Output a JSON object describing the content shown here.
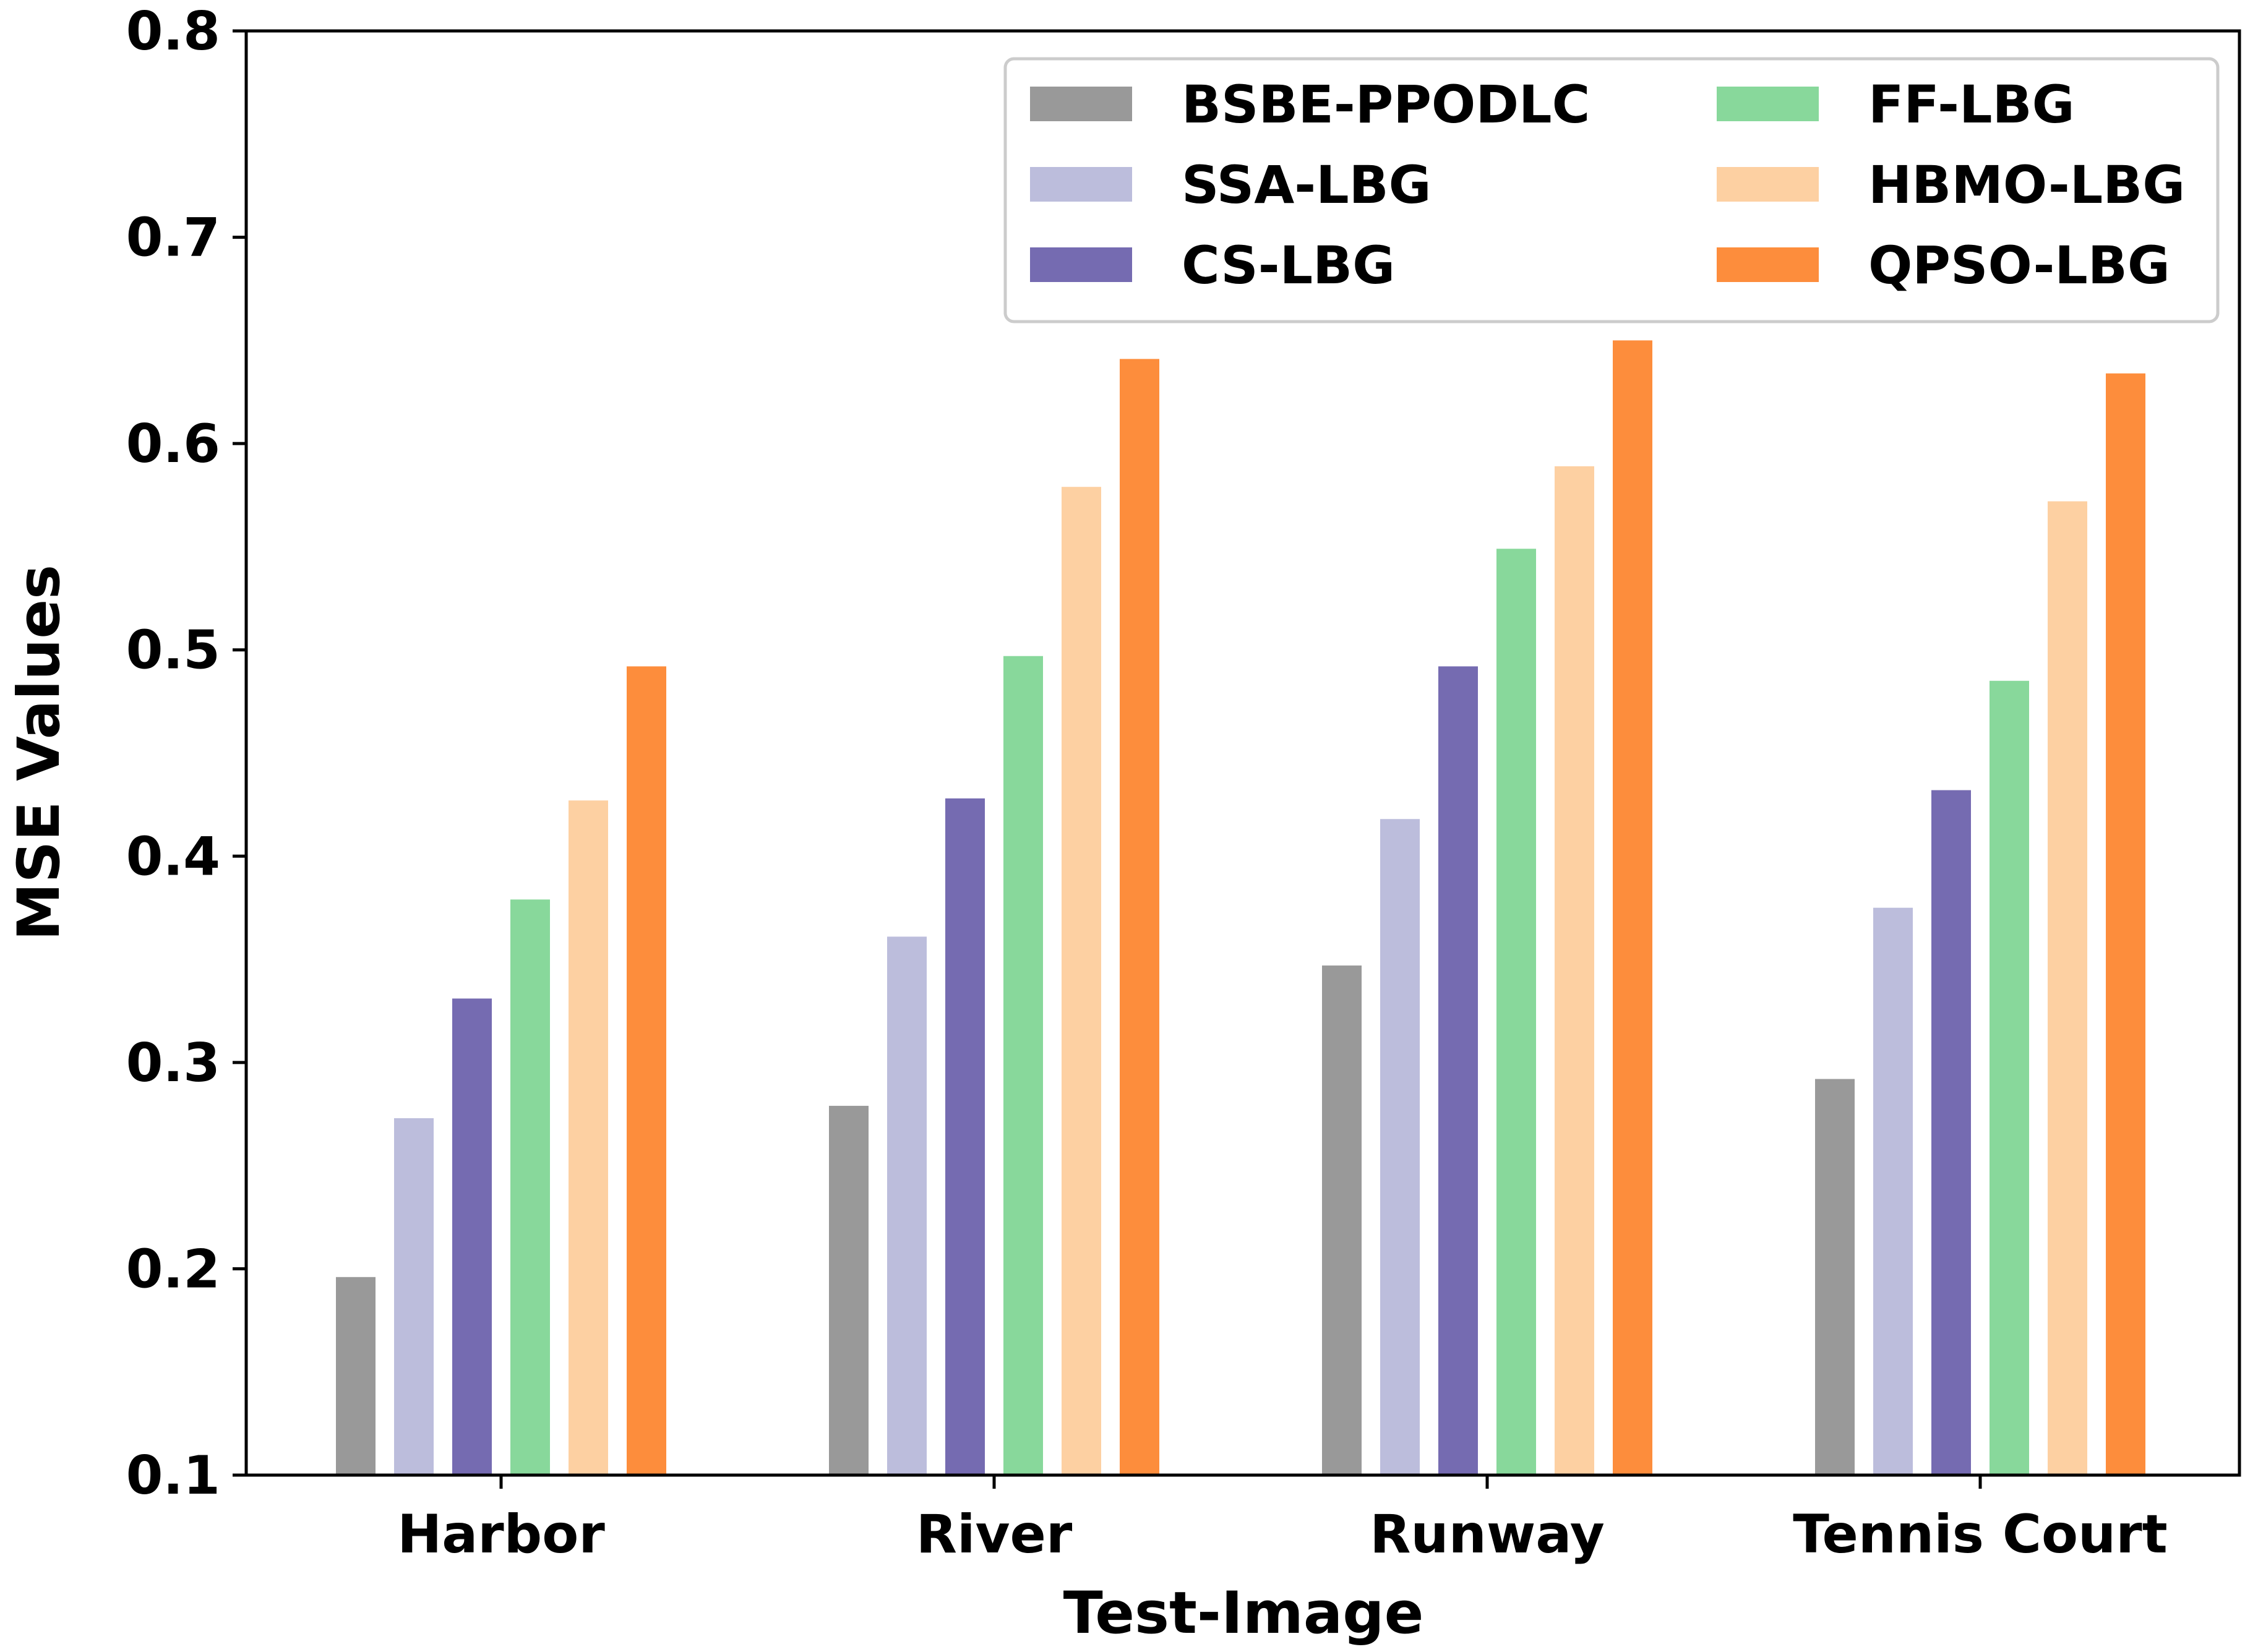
{
  "chart_data": {
    "type": "bar",
    "title": "",
    "xlabel": "Test-Image",
    "ylabel": "MSE Values",
    "ylim": [
      0.1,
      0.8
    ],
    "yticks": [
      "0.1",
      "0.2",
      "0.3",
      "0.4",
      "0.5",
      "0.6",
      "0.7",
      "0.8"
    ],
    "grid": false,
    "legend_position": "top-right",
    "legend_columns": 2,
    "categories": [
      "Harbor",
      "River",
      "Runway",
      "Tennis Court"
    ],
    "series": [
      {
        "name": "BSBE-PPODLC",
        "color": "#999999",
        "values": [
          0.196,
          0.279,
          0.347,
          0.292
        ]
      },
      {
        "name": "SSA-LBG",
        "color": "#bcbddc",
        "values": [
          0.273,
          0.361,
          0.418,
          0.375
        ]
      },
      {
        "name": "CS-LBG",
        "color": "#756bb1",
        "values": [
          0.331,
          0.428,
          0.492,
          0.432
        ]
      },
      {
        "name": "FF-LBG",
        "color": "#88d89b",
        "values": [
          0.379,
          0.497,
          0.549,
          0.485
        ]
      },
      {
        "name": "HBMO-LBG",
        "color": "#fdd0a2",
        "values": [
          0.427,
          0.579,
          0.589,
          0.572
        ]
      },
      {
        "name": "QPSO-LBG",
        "color": "#fd8d3c",
        "values": [
          0.492,
          0.641,
          0.65,
          0.634
        ]
      }
    ]
  }
}
